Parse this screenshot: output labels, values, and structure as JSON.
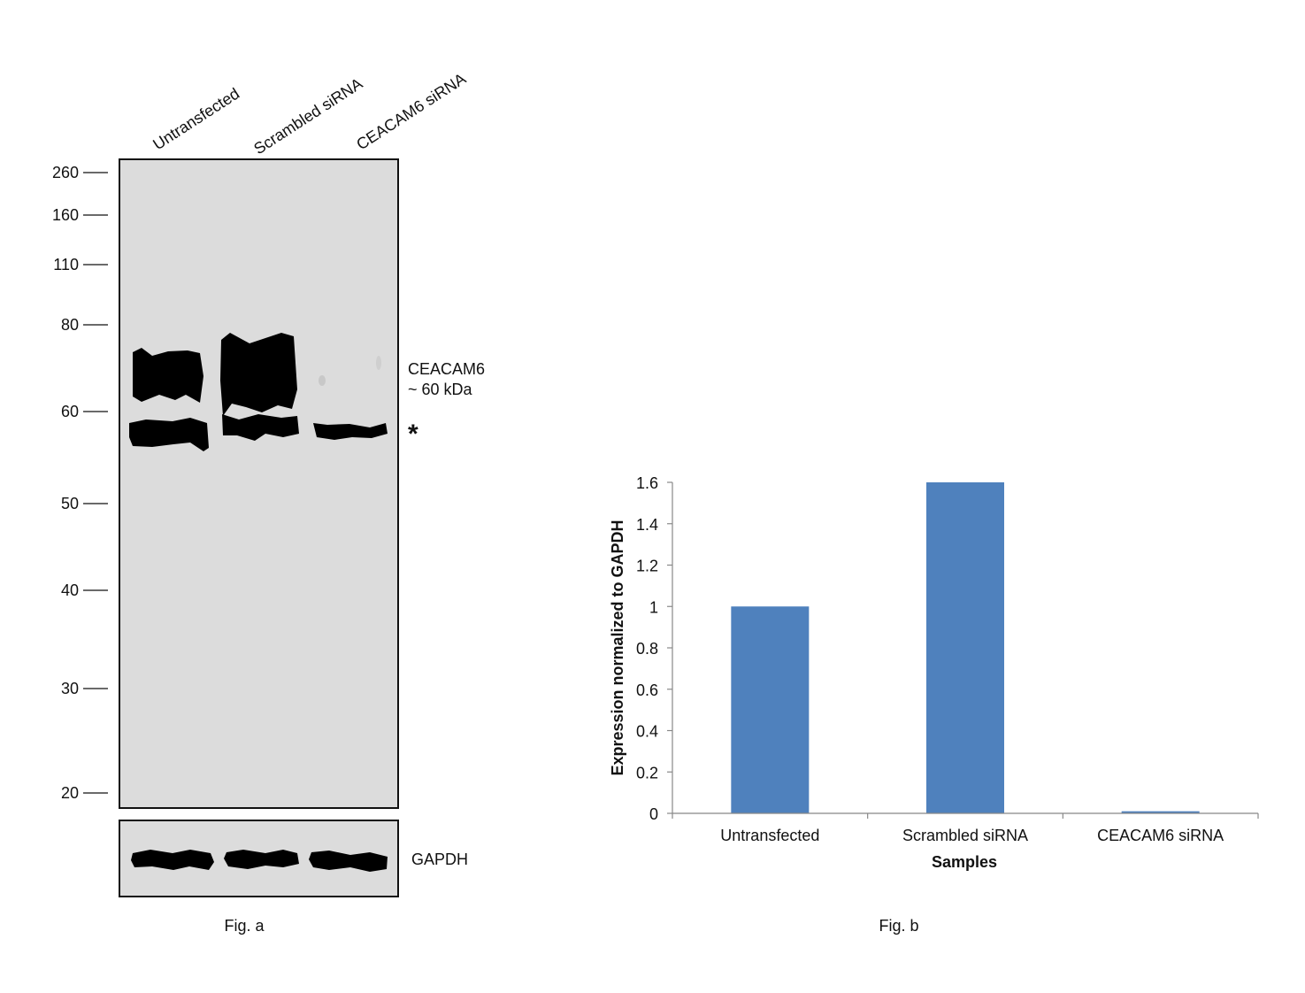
{
  "fig_a": {
    "caption": "Fig. a",
    "lanes": [
      "Untransfected",
      "Scrambled siRNA",
      "CEACAM6 siRNA"
    ],
    "markers": [
      "260",
      "160",
      "110",
      "80",
      "60",
      "50",
      "40",
      "30",
      "20"
    ],
    "band_label_line1": "CEACAM6",
    "band_label_line2": "~ 60 kDa",
    "asterisk": "*",
    "loading_control": "GAPDH",
    "colors": {
      "blot_bg": "#dcdcdc",
      "band": "#000000"
    }
  },
  "chart_data": {
    "type": "bar",
    "caption": "Fig. b",
    "categories": [
      "Untransfected",
      "Scrambled siRNA",
      "CEACAM6 siRNA"
    ],
    "values": [
      1.0,
      1.6,
      0.01
    ],
    "xlabel": "Samples",
    "ylabel": "Expression normalized to GAPDH",
    "ylim": [
      0,
      1.6
    ],
    "yticks": [
      "0",
      "0.2",
      "0.4",
      "0.6",
      "0.8",
      "1",
      "1.2",
      "1.4",
      "1.6"
    ],
    "grid": false,
    "legend": "none",
    "bar_color": "#4f81bd"
  }
}
